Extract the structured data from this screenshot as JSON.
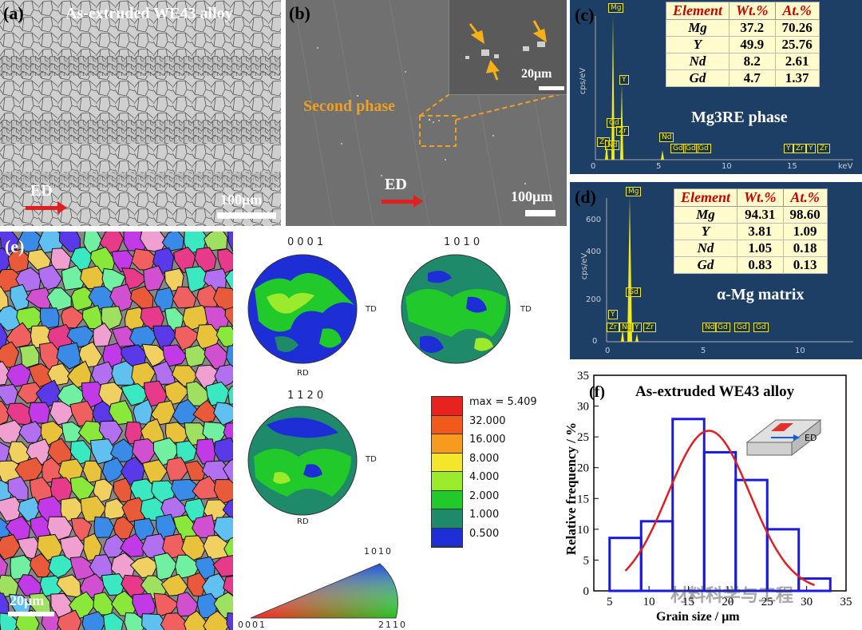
{
  "panel_a": {
    "label": "(a)",
    "title": "As-extruded WE43 alloy",
    "ed": "ED",
    "scale": "100μm"
  },
  "panel_b": {
    "label": "(b)",
    "annotation": "Second phase",
    "inset_scale": "20μm",
    "ed": "ED",
    "scale": "100μm"
  },
  "panel_c": {
    "label": "(c)",
    "headers": [
      "Element",
      "Wt.%",
      "At.%"
    ],
    "rows": [
      [
        "Mg",
        "37.2",
        "70.26"
      ],
      [
        "Y",
        "49.9",
        "25.76"
      ],
      [
        "Nd",
        "8.2",
        "2.61"
      ],
      [
        "Gd",
        "4.7",
        "1.37"
      ]
    ],
    "phase": "Mg3RE phase",
    "peaks": [
      "Mg",
      "Y",
      "Gd",
      "Zr",
      "Zr",
      "Nd",
      "Nd",
      "Gd",
      "Gd",
      "Gd",
      "Y",
      "Zr",
      "Y",
      "Zr"
    ],
    "x_ticks": [
      "0",
      "5",
      "10",
      "15"
    ],
    "x_unit": "keV",
    "y_unit": "cps/eV"
  },
  "panel_d": {
    "label": "(d)",
    "headers": [
      "Element",
      "Wt.%",
      "At.%"
    ],
    "rows": [
      [
        "Mg",
        "94.31",
        "98.60"
      ],
      [
        "Y",
        "3.81",
        "1.09"
      ],
      [
        "Nd",
        "1.05",
        "0.18"
      ],
      [
        "Gd",
        "0.83",
        "0.13"
      ]
    ],
    "phase": "α-Mg matrix",
    "peaks": [
      "Mg",
      "Gd",
      "Y",
      "Zr",
      "Nd",
      "Y",
      "Zr",
      "Nd",
      "Gd",
      "Gd",
      "Gd"
    ],
    "x_ticks": [
      "0",
      "5",
      "10"
    ],
    "y_ticks": [
      "600",
      "400",
      "200",
      "0"
    ],
    "y_unit": "cps/eV"
  },
  "panel_e": {
    "label": "(e)",
    "scale": "20μm",
    "pole_figures": [
      {
        "title": "0001",
        "side": "TD",
        "bottom": "RD"
      },
      {
        "title": "1010",
        "side": "TD",
        "bottom": ""
      },
      {
        "title": "1120",
        "side": "TD",
        "bottom": "RD"
      }
    ],
    "legend": {
      "max": "max = 5.409",
      "levels": [
        "32.000",
        "16.000",
        "8.000",
        "4.000",
        "2.000",
        "1.000",
        "0.500"
      ],
      "colors": [
        "#e8231f",
        "#f25a1c",
        "#f79a1e",
        "#f4e62a",
        "#9bea2b",
        "#22c92a",
        "#1f8a6a",
        "#1d2ed6"
      ]
    },
    "ipf": {
      "top": "1010",
      "left": "0001",
      "right": "2110"
    }
  },
  "panel_f": {
    "label": "(f)",
    "title": "As-extruded WE43 alloy",
    "inset_label": "ED",
    "watermark": "材料科学与工程"
  },
  "chart_data": {
    "type": "bar",
    "title": "As-extruded WE43 alloy",
    "xlabel": "Grain size / μm",
    "ylabel": "Relative frequency / %",
    "xlim": [
      3,
      35
    ],
    "ylim": [
      0,
      35
    ],
    "x_ticks": [
      5,
      10,
      15,
      20,
      25,
      30,
      35
    ],
    "y_ticks": [
      0,
      5,
      10,
      15,
      20,
      25,
      30,
      35
    ],
    "bins": [
      [
        5,
        9
      ],
      [
        9,
        13
      ],
      [
        13,
        17
      ],
      [
        17,
        21
      ],
      [
        21,
        25
      ],
      [
        25,
        29
      ],
      [
        29,
        33
      ]
    ],
    "values": [
      8.6,
      11.3,
      27.9,
      22.5,
      18.0,
      10.0,
      2.0
    ],
    "fit": {
      "type": "gaussian",
      "peak": 26,
      "center": 17.6,
      "sigma": 5.2,
      "x_range": [
        7,
        31
      ]
    },
    "colors": {
      "bars": "#1a1adc",
      "fit": "#e02020"
    }
  }
}
